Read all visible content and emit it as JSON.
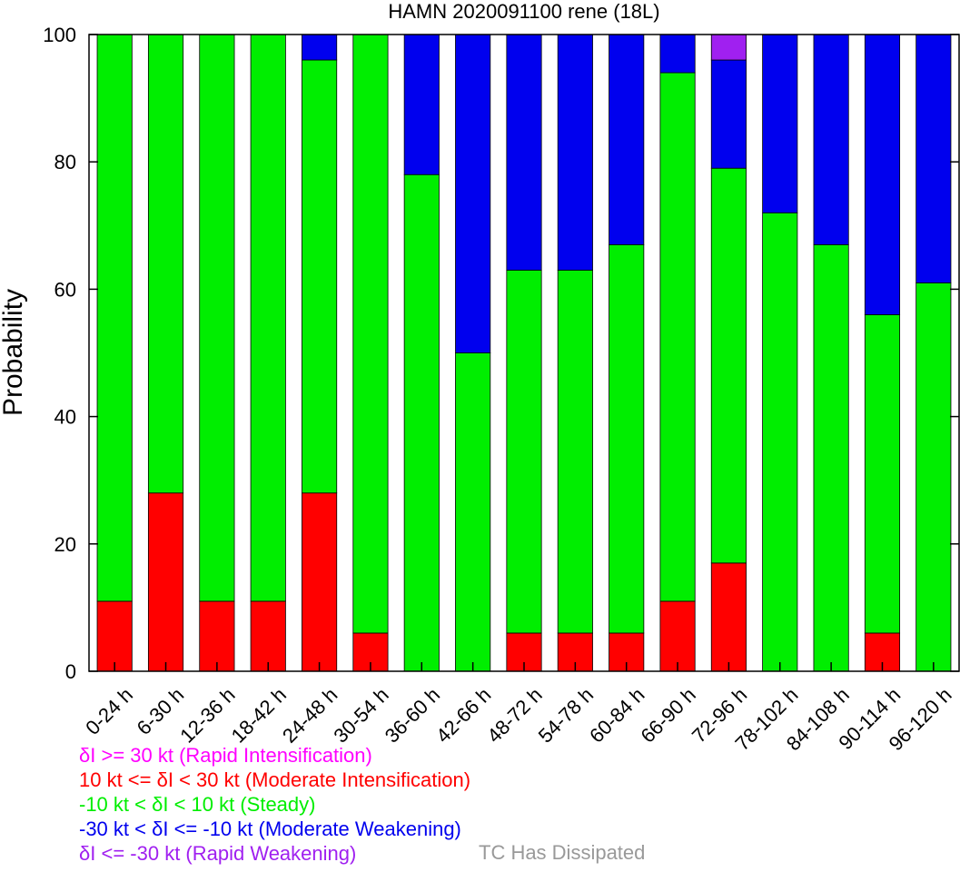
{
  "chart_data": {
    "type": "bar",
    "stacked": true,
    "title": "HAMN 2020091100 rene (18L)",
    "ylabel": "Probability",
    "ylim": [
      0,
      100
    ],
    "yticks": [
      "0",
      "20",
      "40",
      "60",
      "80",
      "100"
    ],
    "categories": [
      "0-24 h",
      "6-30 h",
      "12-36 h",
      "18-42 h",
      "24-48 h",
      "30-54 h",
      "36-60 h",
      "42-66 h",
      "48-72 h",
      "54-78 h",
      "60-84 h",
      "66-90 h",
      "72-96 h",
      "78-102 h",
      "84-108 h",
      "90-114 h",
      "96-120 h"
    ],
    "series": [
      {
        "color": "#ff0000",
        "values": [
          11,
          28,
          11,
          11,
          28,
          6,
          0,
          0,
          6,
          6,
          6,
          11,
          17,
          0,
          0,
          6,
          0
        ]
      },
      {
        "color": "#00ee00",
        "values": [
          89,
          72,
          89,
          89,
          68,
          94,
          78,
          50,
          57,
          57,
          61,
          83,
          62,
          72,
          67,
          50,
          61
        ]
      },
      {
        "color": "#0000ee",
        "values": [
          0,
          0,
          0,
          0,
          4,
          0,
          22,
          50,
          37,
          37,
          33,
          6,
          17,
          28,
          33,
          44,
          39
        ]
      },
      {
        "color": "#a020f0",
        "values": [
          0,
          0,
          0,
          0,
          0,
          0,
          0,
          0,
          0,
          0,
          0,
          0,
          4,
          0,
          0,
          0,
          0
        ]
      }
    ],
    "legend_position": "bottom"
  },
  "legend": {
    "items": [
      {
        "text": "δI >= 30 kt (Rapid Intensification)",
        "color": "#ff00ff"
      },
      {
        "text": "10 kt <= δI < 30 kt (Moderate Intensification)",
        "color": "#ff0000"
      },
      {
        "text": "-10 kt < δI < 10 kt (Steady)",
        "color": "#00ee00"
      },
      {
        "text": "-30 kt < δI <= -10 kt (Moderate Weakening)",
        "color": "#0000ee"
      },
      {
        "text": "δI <= -30 kt (Rapid Weakening)",
        "color": "#a020f0"
      }
    ],
    "dissipated": {
      "text": "TC Has Dissipated",
      "color": "#999999"
    }
  }
}
